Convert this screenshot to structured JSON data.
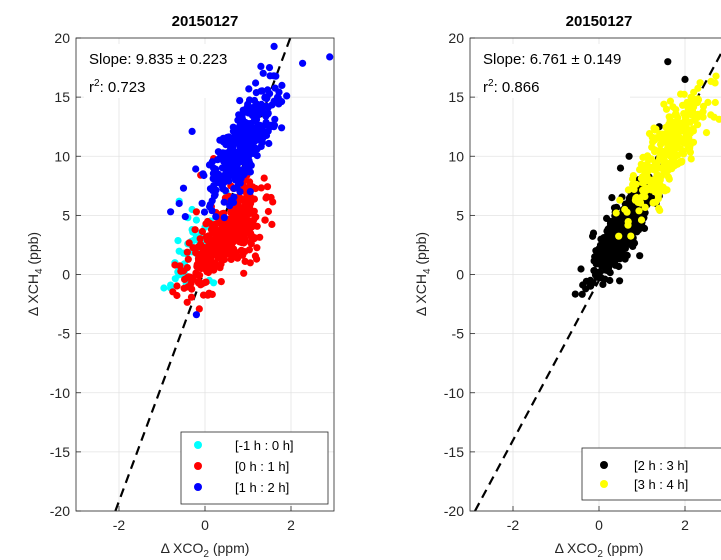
{
  "chart_data": [
    {
      "type": "scatter",
      "title": "20150127",
      "xlabel_prefix": "Δ XCO",
      "xlabel_sub": "2",
      "xlabel_suffix": " (ppm)",
      "ylabel_prefix": "Δ XCH",
      "ylabel_sub": "4",
      "ylabel_suffix": " (ppb)",
      "xlim": [
        -3,
        3
      ],
      "ylim": [
        -20,
        20
      ],
      "xticks": [
        -2,
        0,
        2
      ],
      "yticks": [
        -20,
        -15,
        -10,
        -5,
        0,
        5,
        10,
        15,
        20
      ],
      "grid": true,
      "legend_position": "bottom-right",
      "annotation": {
        "slope_text": "Slope: 9.835 ± 0.223",
        "r2_prefix": "r",
        "r2_sup": "2",
        "r2_suffix": ": 0.723"
      },
      "fit_line": {
        "slope": 9.835,
        "intercept": 0.5,
        "color": "#000000",
        "style": "dashed"
      },
      "series": [
        {
          "name": "[-1 h : 0 h]",
          "color": "#00ffff",
          "points": [
            [
              -0.8,
              -0.9
            ],
            [
              -0.6,
              0.5
            ],
            [
              -0.5,
              1.8
            ],
            [
              -0.4,
              2.6
            ],
            [
              -0.3,
              3.8
            ],
            [
              -0.2,
              4.6
            ],
            [
              -0.6,
              6.2
            ],
            [
              -0.3,
              5.5
            ],
            [
              -0.1,
              2.2
            ],
            [
              0.0,
              0.6
            ],
            [
              0.1,
              -0.5
            ],
            [
              0.2,
              -0.7
            ],
            [
              -0.7,
              1.0
            ],
            [
              -0.2,
              3.2
            ],
            [
              0.0,
              4.0
            ],
            [
              -0.4,
              4.8
            ]
          ],
          "cloud": {
            "n": 45,
            "cx": -0.2,
            "cy": 2.2,
            "sx": 0.3,
            "sy": 1.6,
            "rho": 0.6,
            "seed": 11
          }
        },
        {
          "name": "[0 h : 1 h]",
          "color": "#ff0000",
          "points": [
            [
              -0.7,
              0.8
            ],
            [
              -0.5,
              0.3
            ],
            [
              -0.3,
              -0.5
            ],
            [
              0.2,
              9.8
            ],
            [
              -0.1,
              8.4
            ],
            [
              1.4,
              4.6
            ],
            [
              1.2,
              1.3
            ],
            [
              -0.2,
              5.3
            ],
            [
              0.9,
              0.1
            ],
            [
              0.6,
              7.5
            ]
          ],
          "cloud": {
            "n": 420,
            "cx": 0.5,
            "cy": 3.2,
            "sx": 0.42,
            "sy": 2.0,
            "rho": 0.7,
            "seed": 22
          }
        },
        {
          "name": "[1 h : 2 h]",
          "color": "#0000ff",
          "points": [
            [
              2.9,
              18.4
            ],
            [
              1.9,
              15.1
            ],
            [
              1.5,
              17.5
            ],
            [
              1.3,
              17.6
            ],
            [
              -0.8,
              5.3
            ],
            [
              -0.6,
              6.0
            ],
            [
              -0.5,
              7.3
            ],
            [
              -0.3,
              12.1
            ],
            [
              -0.2,
              -3.4
            ],
            [
              0.5,
              11.1
            ],
            [
              0.3,
              8.2
            ],
            [
              1.6,
              16.8
            ],
            [
              0.2,
              9.0
            ]
          ],
          "cloud": {
            "n": 360,
            "cx": 0.9,
            "cy": 11.0,
            "sx": 0.38,
            "sy": 2.3,
            "rho": 0.75,
            "seed": 33
          }
        }
      ]
    },
    {
      "type": "scatter",
      "title": "20150127",
      "xlabel_prefix": "Δ XCO",
      "xlabel_sub": "2",
      "xlabel_suffix": " (ppm)",
      "ylabel_prefix": "Δ XCH",
      "ylabel_sub": "4",
      "ylabel_suffix": " (ppb)",
      "xlim": [
        -3,
        3
      ],
      "ylim": [
        -20,
        20
      ],
      "xticks": [
        -2,
        0,
        2
      ],
      "yticks": [
        -20,
        -15,
        -10,
        -5,
        0,
        5,
        10,
        15,
        20
      ],
      "grid": true,
      "legend_position": "bottom-right",
      "annotation": {
        "slope_text": "Slope: 6.761 ± 0.149",
        "r2_prefix": "r",
        "r2_sup": "2",
        "r2_suffix": ": 0.866"
      },
      "fit_line": {
        "slope": 6.761,
        "intercept": -0.5,
        "color": "#000000",
        "style": "dashed"
      },
      "series": [
        {
          "name": "[2 h : 3 h]",
          "color": "#000000",
          "points": [
            [
              -0.2,
              -0.5
            ],
            [
              0.0,
              0.2
            ],
            [
              0.3,
              6.5
            ],
            [
              0.5,
              9.0
            ],
            [
              1.6,
              18.0
            ],
            [
              1.4,
              12.5
            ],
            [
              2.0,
              16.5
            ],
            [
              0.1,
              3.0
            ],
            [
              0.7,
              10.0
            ],
            [
              -0.1,
              1.5
            ]
          ],
          "cloud": {
            "n": 430,
            "cx": 0.5,
            "cy": 3.5,
            "sx": 0.35,
            "sy": 2.1,
            "rho": 0.82,
            "seed": 44
          }
        },
        {
          "name": "[3 h : 4 h]",
          "color": "#ffff00",
          "points": [
            [
              2.7,
              16.2
            ],
            [
              2.6,
              13.5
            ],
            [
              2.5,
              12.0
            ],
            [
              0.6,
              5.5
            ],
            [
              0.4,
              5.2
            ]
          ],
          "cloud": {
            "n": 300,
            "cx": 1.6,
            "cy": 10.5,
            "sx": 0.45,
            "sy": 2.5,
            "rho": 0.8,
            "seed": 55
          }
        }
      ]
    }
  ]
}
